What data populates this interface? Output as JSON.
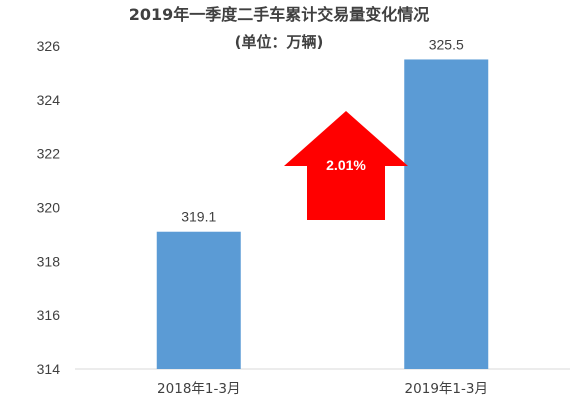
{
  "chart_data": {
    "type": "bar",
    "title": "2019年一季度二手车累计交易量变化情况",
    "subtitle": "(单位：万辆)",
    "categories": [
      "2018年1-3月",
      "2019年1-3月"
    ],
    "series": [
      {
        "values": [
          319.1,
          325.5
        ]
      }
    ],
    "data_labels": [
      "319.1",
      "325.5"
    ],
    "ylim": [
      314,
      326
    ],
    "yticks": [
      314,
      316,
      318,
      320,
      322,
      324,
      326
    ],
    "grid": false,
    "annotation": {
      "shape": "up-arrow",
      "text": "2.01%"
    }
  },
  "colors": {
    "bar": "#5b9bd5",
    "arrow": "#ff0000",
    "axis": "#d9d9d9",
    "text": "#404040"
  }
}
